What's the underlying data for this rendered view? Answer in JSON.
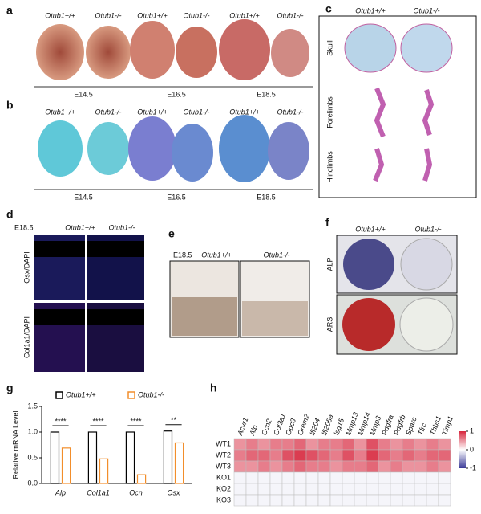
{
  "panels": {
    "a": {
      "label": "a",
      "genotypes": [
        "Otub1+/+",
        "Otub1-/-",
        "Otub1+/+",
        "Otub1-/-",
        "Otub1+/+",
        "Otub1-/-"
      ],
      "stages": [
        "E14.5",
        "E16.5",
        "E18.5"
      ]
    },
    "b": {
      "label": "b",
      "genotypes": [
        "Otub1+/+",
        "Otub1-/-",
        "Otub1+/+",
        "Otub1-/-",
        "Otub1+/+",
        "Otub1-/-"
      ],
      "stages": [
        "E14.5",
        "E16.5",
        "E18.5"
      ]
    },
    "c": {
      "label": "c",
      "genotypes": [
        "Otub1+/+",
        "Otub1-/-"
      ],
      "rows": [
        "Skull",
        "Forelimbs",
        "Hindlimbs"
      ]
    },
    "d": {
      "label": "d",
      "stage": "E18.5",
      "genotypes": [
        "Otub1+/+",
        "Otub1-/-"
      ],
      "stains": [
        "Osx/DAPI",
        "Col1a1/DAPI"
      ]
    },
    "e": {
      "label": "e",
      "stage": "E18.5",
      "genotypes": [
        "Otub1+/+",
        "Otub1-/-"
      ]
    },
    "f": {
      "label": "f",
      "genotypes": [
        "Otub1+/+",
        "Otub1-/-"
      ],
      "stains": [
        "ALP",
        "ARS"
      ]
    }
  },
  "chart_data": [
    {
      "type": "bar",
      "label": "g",
      "ylabel": "Relative mRNA Level",
      "categories": [
        "Alp",
        "Col1a1",
        "Ocn",
        "Osx"
      ],
      "series": [
        {
          "name": "Otub1+/+",
          "color": "#000000",
          "values": [
            1.0,
            1.0,
            1.0,
            1.02
          ]
        },
        {
          "name": "Otub1-/-",
          "color": "#f28e2b",
          "values": [
            0.69,
            0.48,
            0.17,
            0.79
          ]
        }
      ],
      "significance": [
        "****",
        "****",
        "****",
        "**"
      ],
      "ylim": [
        0,
        1.5
      ],
      "yticks": [
        {
          "value": 0,
          "label": "0.0"
        },
        {
          "value": 0.5,
          "label": "0.5"
        },
        {
          "value": 1,
          "label": "1.0"
        },
        {
          "value": 1.5,
          "label": "1.5"
        }
      ]
    },
    {
      "type": "heatmap",
      "label": "h",
      "x": [
        "Acvr1",
        "Alp",
        "Ccn2",
        "Col3a1",
        "Gpc3",
        "Grem2",
        "Ifi204",
        "Ifi205a",
        "Isg15",
        "Mmp13",
        "Mmp14",
        "Mmp3",
        "Pdgfra",
        "Pdgfrb",
        "Sparc",
        "Tfrc",
        "Thbs1",
        "Timp1"
      ],
      "y": [
        "WT1",
        "WT2",
        "WT3",
        "KO1",
        "KO2",
        "KO3"
      ],
      "values": [
        [
          0.5,
          0.6,
          0.5,
          0.6,
          0.6,
          0.7,
          0.5,
          0.6,
          0.6,
          0.7,
          0.5,
          0.8,
          0.6,
          0.5,
          0.6,
          0.5,
          0.6,
          0.5
        ],
        [
          0.6,
          0.7,
          0.7,
          0.6,
          0.8,
          0.9,
          0.8,
          0.7,
          0.6,
          0.8,
          0.6,
          0.9,
          0.7,
          0.6,
          0.7,
          0.6,
          0.7,
          0.7
        ],
        [
          0.5,
          0.5,
          0.6,
          0.5,
          0.6,
          0.7,
          0.6,
          0.6,
          0.5,
          0.6,
          0.6,
          0.7,
          0.5,
          0.6,
          0.5,
          0.5,
          0.6,
          0.5
        ],
        [
          -0.05,
          -0.05,
          -0.05,
          -0.05,
          -0.05,
          -0.05,
          -0.05,
          -0.05,
          -0.05,
          -0.05,
          -0.05,
          -0.05,
          -0.05,
          -0.05,
          -0.05,
          -0.05,
          -0.05,
          -0.05
        ],
        [
          -0.05,
          -0.05,
          -0.05,
          -0.05,
          -0.05,
          -0.05,
          -0.05,
          -0.05,
          -0.05,
          -0.05,
          -0.05,
          -0.05,
          -0.05,
          -0.05,
          -0.05,
          -0.05,
          -0.05,
          -0.05
        ],
        [
          -0.05,
          -0.05,
          -0.05,
          -0.05,
          -0.05,
          -0.05,
          -0.05,
          -0.05,
          -0.05,
          -0.05,
          -0.05,
          -0.05,
          -0.05,
          -0.05,
          -0.05,
          -0.05,
          -0.05,
          -0.05
        ]
      ],
      "zlim": [
        -1,
        1
      ],
      "colorbar_ticks": [
        1,
        0,
        -1
      ]
    }
  ]
}
